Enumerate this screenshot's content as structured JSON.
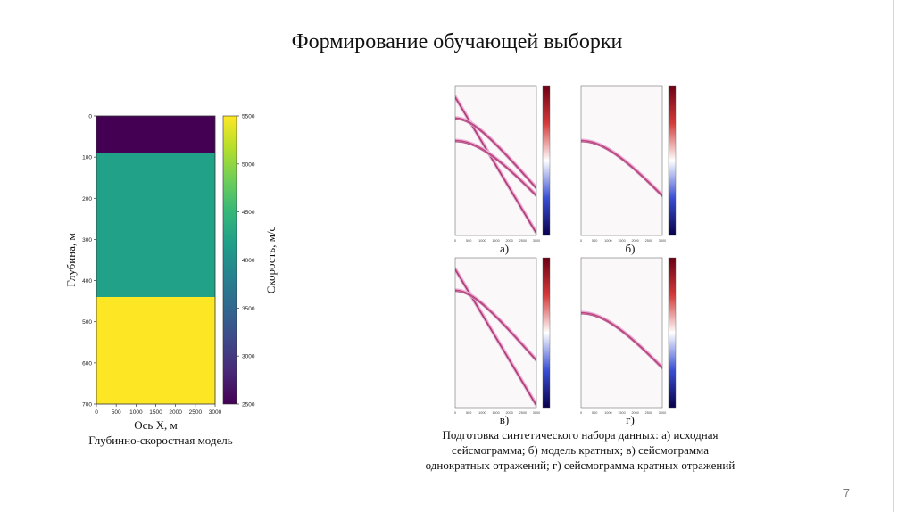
{
  "title": "Формирование обучающей выборки",
  "page_number": "7",
  "left_caption": "Глубинно-скоростная модель",
  "right_caption": [
    "Подготовка синтетического набора данных: а) исходная",
    "сейсмограмма; б) модель кратных; в) сейсмограмма",
    "однократных отражений; г) сейсмограмма кратных отражений"
  ],
  "colors": {
    "viridis_dark": "#440154",
    "viridis_teal": "#21908d",
    "viridis_green": "#3bb778",
    "viridis_yellow": "#fde725",
    "seismic_red": "#b2182b",
    "seismic_blue": "#0c2a8c"
  },
  "chart_data": [
    {
      "type": "heatmap",
      "xlabel": "Ось X, м",
      "ylabel": "Глубина, м",
      "xlim": [
        0,
        3000
      ],
      "ylim": [
        700,
        0
      ],
      "x_ticks": [
        "0",
        "500",
        "1000",
        "1500",
        "2000",
        "2500",
        "3000"
      ],
      "y_ticks": [
        "0",
        "100",
        "200",
        "300",
        "400",
        "500",
        "600",
        "700"
      ],
      "layers": [
        {
          "top": 0,
          "bottom": 90,
          "velocity": 2500
        },
        {
          "top": 90,
          "bottom": 440,
          "velocity": 4200
        },
        {
          "top": 440,
          "bottom": 700,
          "velocity": 5500
        }
      ],
      "colorbar": {
        "label": "Скорость, м/с",
        "range": [
          2500,
          5500
        ],
        "ticks": [
          "2500",
          "3000",
          "3500",
          "4000",
          "4500",
          "5000",
          "5500"
        ]
      }
    },
    {
      "type": "heatmap",
      "panel_label": "а)",
      "x_ticks": [
        "0",
        "500",
        "1000",
        "1500",
        "2000",
        "2500",
        "3000"
      ],
      "xlim": [
        0,
        3000
      ],
      "ylim": [
        1.2,
        0
      ],
      "curves": [
        {
          "t0": 0.09,
          "t_end": 1.18,
          "kind": "linear"
        },
        {
          "t0": 0.26,
          "t_end": 0.82,
          "kind": "hyperbola"
        },
        {
          "t0": 0.44,
          "t_end": 0.88,
          "kind": "hyperbola"
        }
      ]
    },
    {
      "type": "heatmap",
      "panel_label": "б)",
      "x_ticks": [
        "0",
        "500",
        "1000",
        "1500",
        "2000",
        "2500",
        "3000"
      ],
      "xlim": [
        0,
        3000
      ],
      "ylim": [
        1.2,
        0
      ],
      "curves": [
        {
          "t0": 0.44,
          "t_end": 0.88,
          "kind": "hyperbola"
        }
      ]
    },
    {
      "type": "heatmap",
      "panel_label": "в)",
      "x_ticks": [
        "0",
        "500",
        "1000",
        "1500",
        "2000",
        "2500",
        "3000"
      ],
      "xlim": [
        0,
        3000
      ],
      "ylim": [
        1.2,
        0
      ],
      "curves": [
        {
          "t0": 0.09,
          "t_end": 1.18,
          "kind": "linear"
        },
        {
          "t0": 0.26,
          "t_end": 0.82,
          "kind": "hyperbola"
        }
      ]
    },
    {
      "type": "heatmap",
      "panel_label": "г)",
      "x_ticks": [
        "0",
        "500",
        "1000",
        "1500",
        "2000",
        "2500",
        "3000"
      ],
      "xlim": [
        0,
        3000
      ],
      "ylim": [
        1.2,
        0
      ],
      "curves": [
        {
          "t0": 0.44,
          "t_end": 0.88,
          "kind": "hyperbola"
        }
      ]
    }
  ]
}
